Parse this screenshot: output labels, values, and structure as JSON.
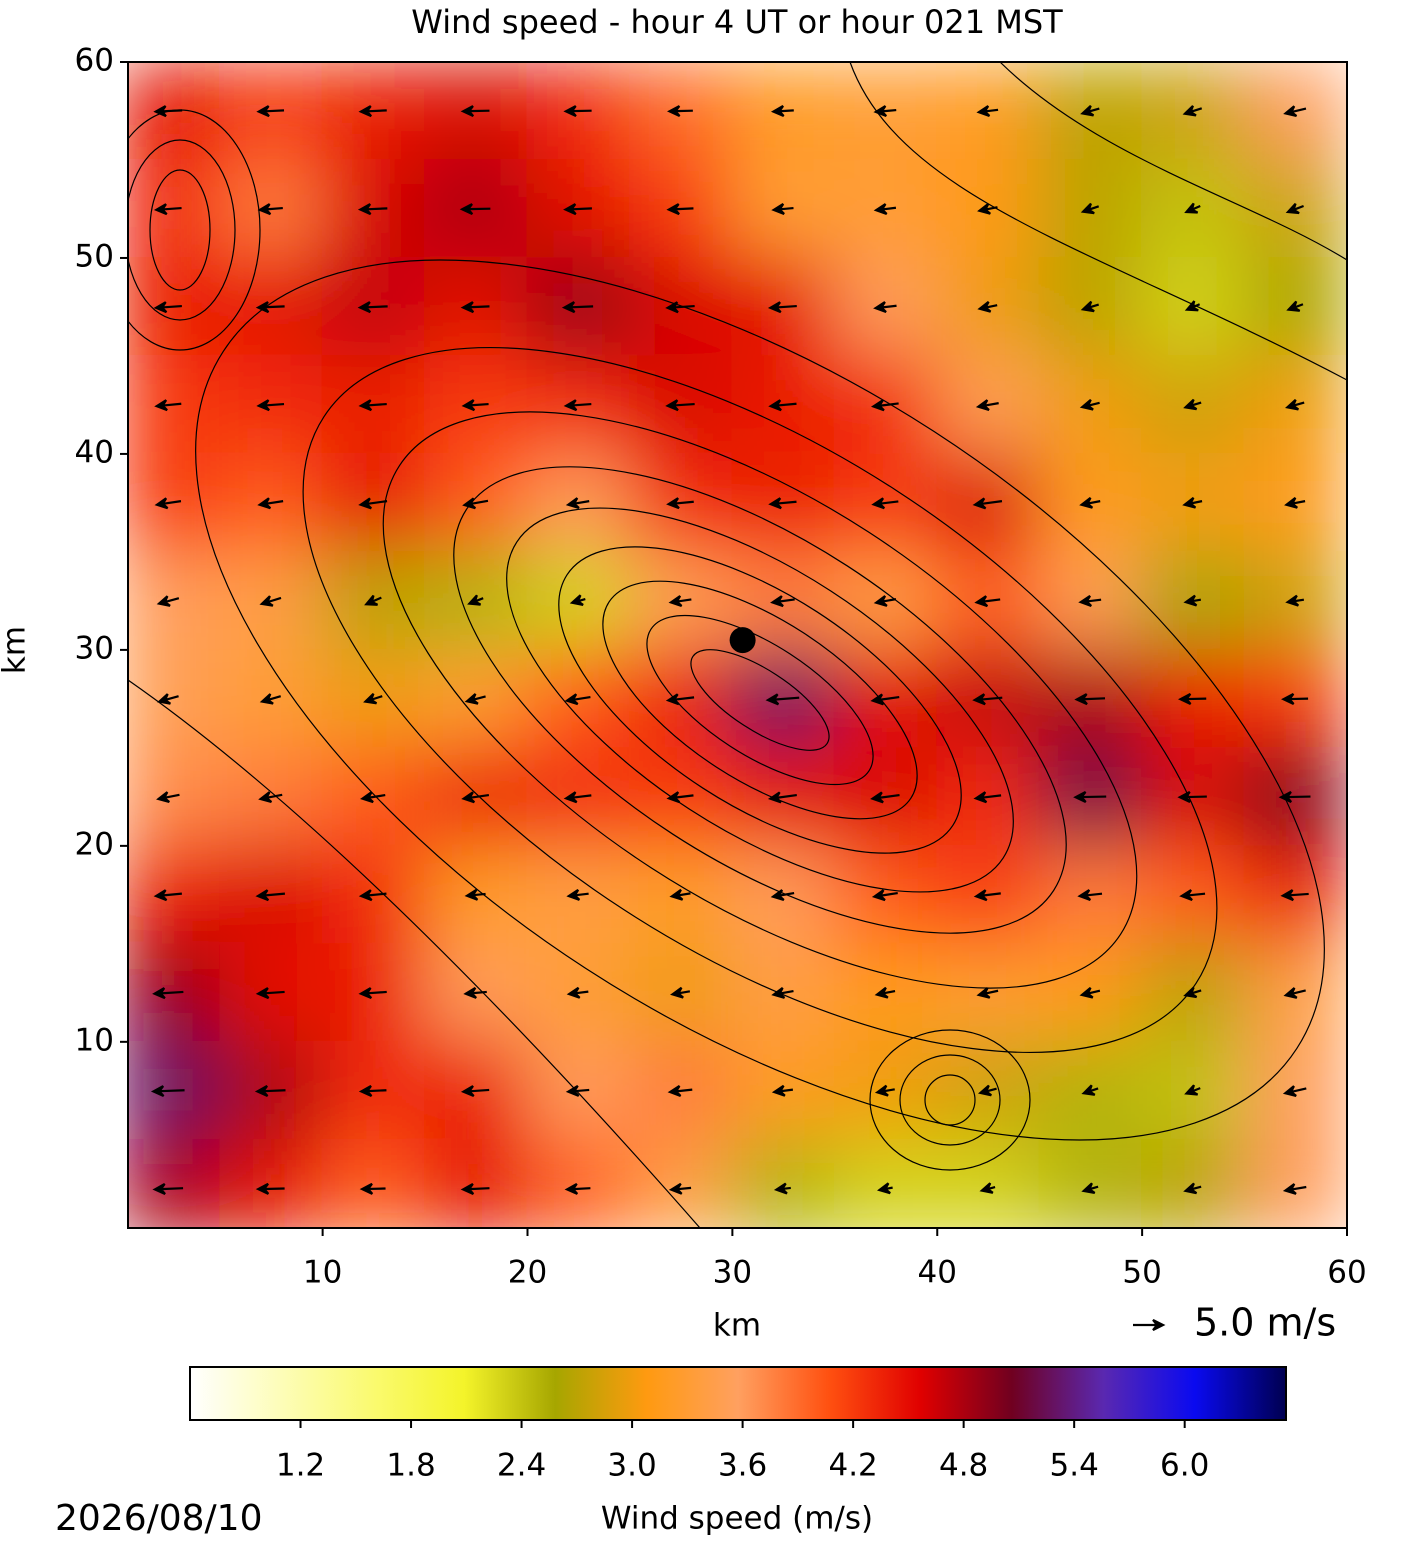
{
  "chart_data": {
    "type": "contourf",
    "title": "Wind speed - hour 4 UT or hour 021 MST",
    "xlabel": "km",
    "ylabel": "km",
    "xlim": [
      0.5,
      60
    ],
    "ylim": [
      0.5,
      60
    ],
    "xticks": [
      10,
      20,
      30,
      40,
      50,
      60
    ],
    "yticks": [
      10,
      20,
      30,
      40,
      50,
      60
    ],
    "x": [
      2.5,
      7.5,
      12.5,
      17.5,
      22.5,
      27.5,
      32.5,
      37.5,
      42.5,
      47.5,
      52.5,
      57.5
    ],
    "y": [
      57.5,
      52.5,
      47.5,
      42.5,
      37.5,
      32.5,
      27.5,
      22.5,
      17.5,
      12.5,
      7.5,
      2.5
    ],
    "z": [
      [
        4.5,
        4.2,
        4.4,
        4.6,
        4.3,
        3.9,
        3.2,
        3.3,
        3.2,
        2.7,
        2.8,
        3.6
      ],
      [
        4.3,
        3.8,
        4.6,
        4.8,
        4.5,
        4.2,
        3.3,
        3.3,
        3.1,
        2.7,
        2.4,
        2.8
      ],
      [
        4.4,
        4.5,
        4.7,
        4.5,
        4.9,
        4.6,
        4.5,
        3.6,
        3.0,
        2.7,
        2.3,
        2.6
      ],
      [
        4.2,
        4.3,
        4.4,
        4.2,
        4.3,
        4.6,
        4.4,
        4.3,
        3.5,
        3.0,
        2.8,
        3.0
      ],
      [
        4.2,
        4.0,
        4.5,
        4.0,
        3.6,
        4.3,
        4.4,
        4.2,
        4.6,
        3.2,
        3.0,
        3.2
      ],
      [
        3.6,
        3.4,
        2.7,
        2.5,
        2.3,
        3.5,
        3.8,
        3.4,
        4.0,
        3.5,
        2.6,
        2.8
      ],
      [
        3.5,
        3.3,
        3.0,
        3.3,
        4.0,
        4.4,
        5.3,
        4.5,
        4.7,
        4.8,
        4.4,
        4.2
      ],
      [
        3.7,
        3.8,
        4.0,
        4.4,
        4.3,
        4.2,
        4.5,
        4.6,
        4.3,
        5.2,
        4.6,
        5.0
      ],
      [
        4.4,
        4.6,
        4.3,
        3.2,
        3.4,
        3.2,
        3.6,
        4.0,
        4.2,
        3.8,
        4.0,
        4.4
      ],
      [
        4.9,
        4.5,
        4.4,
        3.6,
        3.3,
        3.0,
        3.4,
        3.1,
        3.3,
        3.1,
        2.7,
        3.4
      ],
      [
        5.3,
        4.8,
        4.3,
        4.4,
        3.6,
        3.8,
        3.2,
        3.0,
        2.8,
        2.5,
        2.4,
        3.6
      ],
      [
        4.8,
        4.5,
        4.0,
        4.5,
        4.0,
        3.4,
        2.5,
        2.3,
        2.3,
        2.5,
        2.7,
        3.6
      ]
    ],
    "quiver": {
      "u": [
        [
          -4.4,
          -4.2,
          -4.3,
          -4.4,
          -4.3,
          -3.9,
          -3.4,
          -3.4,
          -3.2,
          -2.8,
          -2.8,
          -3.4
        ],
        [
          -4.2,
          -3.8,
          -4.5,
          -4.7,
          -4.4,
          -4.1,
          -3.3,
          -3.3,
          -3.0,
          -2.6,
          -2.3,
          -2.6
        ],
        [
          -4.3,
          -4.4,
          -4.6,
          -4.4,
          -4.8,
          -4.5,
          -4.4,
          -3.5,
          -2.9,
          -2.6,
          -2.1,
          -2.4
        ],
        [
          -4.1,
          -4.2,
          -4.3,
          -4.1,
          -4.2,
          -4.5,
          -4.3,
          -4.2,
          -3.4,
          -2.9,
          -2.6,
          -2.8
        ],
        [
          -4.0,
          -3.9,
          -4.4,
          -3.9,
          -3.5,
          -4.2,
          -4.3,
          -4.1,
          -4.5,
          -3.1,
          -2.9,
          -3.1
        ],
        [
          -3.3,
          -3.2,
          -2.5,
          -2.3,
          -2.2,
          -3.4,
          -3.7,
          -3.3,
          -3.9,
          -3.4,
          -2.5,
          -2.7
        ],
        [
          -3.2,
          -3.1,
          -2.8,
          -3.1,
          -3.9,
          -4.3,
          -5.2,
          -4.4,
          -4.6,
          -4.7,
          -4.3,
          -4.1
        ],
        [
          -3.5,
          -3.6,
          -3.8,
          -4.2,
          -4.2,
          -4.1,
          -4.4,
          -4.5,
          -4.2,
          -5.1,
          -4.5,
          -4.9
        ],
        [
          -4.3,
          -4.5,
          -4.2,
          -3.1,
          -3.3,
          -3.1,
          -3.5,
          -3.9,
          -4.1,
          -3.7,
          -3.9,
          -4.3
        ],
        [
          -4.8,
          -4.4,
          -4.3,
          -3.5,
          -3.2,
          -2.9,
          -3.3,
          -3.0,
          -3.2,
          -3.0,
          -2.6,
          -3.3
        ],
        [
          -5.2,
          -4.7,
          -4.2,
          -4.3,
          -3.5,
          -3.7,
          -3.1,
          -2.9,
          -2.7,
          -2.4,
          -2.3,
          -3.5
        ],
        [
          -4.7,
          -4.4,
          -3.9,
          -4.4,
          -3.9,
          -3.3,
          -2.4,
          -2.2,
          -2.2,
          -2.4,
          -2.6,
          -3.5
        ]
      ],
      "v": [
        [
          -0.2,
          -0.2,
          -0.2,
          -0.1,
          -0.1,
          -0.1,
          -0.2,
          -0.3,
          -0.4,
          -0.8,
          -0.9,
          -0.8
        ],
        [
          -0.3,
          -0.3,
          -0.2,
          -0.1,
          -0.2,
          -0.2,
          -0.3,
          -0.4,
          -0.6,
          -0.9,
          -1.0,
          -1.0
        ],
        [
          -0.3,
          -0.2,
          -0.2,
          -0.2,
          -0.2,
          -0.3,
          -0.3,
          -0.4,
          -0.6,
          -0.8,
          -0.9,
          -0.9
        ],
        [
          -0.4,
          -0.3,
          -0.3,
          -0.3,
          -0.3,
          -0.3,
          -0.4,
          -0.5,
          -0.6,
          -0.7,
          -0.8,
          -0.8
        ],
        [
          -0.6,
          -0.6,
          -0.6,
          -0.7,
          -0.6,
          -0.4,
          -0.4,
          -0.5,
          -0.6,
          -0.6,
          -0.6,
          -0.6
        ],
        [
          -0.9,
          -1.0,
          -1.1,
          -0.9,
          -0.6,
          -0.5,
          -0.5,
          -0.6,
          -0.5,
          -0.4,
          -0.4,
          -0.4
        ],
        [
          -0.9,
          -0.9,
          -0.9,
          -0.8,
          -0.6,
          -0.5,
          -0.4,
          -0.6,
          -0.4,
          -0.2,
          -0.1,
          -0.1
        ],
        [
          -0.7,
          -0.7,
          -0.6,
          -0.6,
          -0.5,
          -0.5,
          -0.6,
          -0.6,
          -0.5,
          -0.1,
          -0.1,
          -0.1
        ],
        [
          -0.4,
          -0.4,
          -0.4,
          -0.3,
          -0.4,
          -0.5,
          -0.6,
          -0.6,
          -0.5,
          -0.4,
          -0.4,
          -0.3
        ],
        [
          -0.3,
          -0.3,
          -0.3,
          -0.3,
          -0.4,
          -0.5,
          -0.6,
          -0.6,
          -0.7,
          -0.7,
          -0.8,
          -0.8
        ],
        [
          -0.2,
          -0.2,
          -0.2,
          -0.3,
          -0.3,
          -0.4,
          -0.4,
          -0.5,
          -0.7,
          -0.8,
          -0.9,
          -0.8
        ],
        [
          -0.2,
          -0.1,
          -0.1,
          -0.2,
          -0.2,
          -0.3,
          -0.3,
          -0.4,
          -0.6,
          -0.7,
          -0.7,
          -0.6
        ]
      ]
    },
    "point_x": [
      30.5
    ],
    "point_y": [
      30.5
    ],
    "quiver_key": {
      "value": 5.0,
      "label": "5.0 m/s"
    },
    "colorbar": {
      "label": "Wind speed (m/s)",
      "lim": [
        0.6,
        6.55
      ],
      "ticks": [
        1.2,
        1.8,
        2.4,
        {
          "value": 3,
          "label": "3.0"
        },
        3.6,
        4.2,
        4.8,
        5.4,
        {
          "value": 6,
          "label": "6.0"
        }
      ],
      "colormap": [
        "#ffffff",
        "#fdfdb8",
        "#fafa70",
        "#f4f42a",
        "#a6a600",
        "#ff9a10",
        "#ffa060",
        "#ff5010",
        "#e00000",
        "#700020",
        "#5a28b0",
        "#0a0af0",
        "#000050"
      ]
    },
    "date": "2026/08/10"
  }
}
